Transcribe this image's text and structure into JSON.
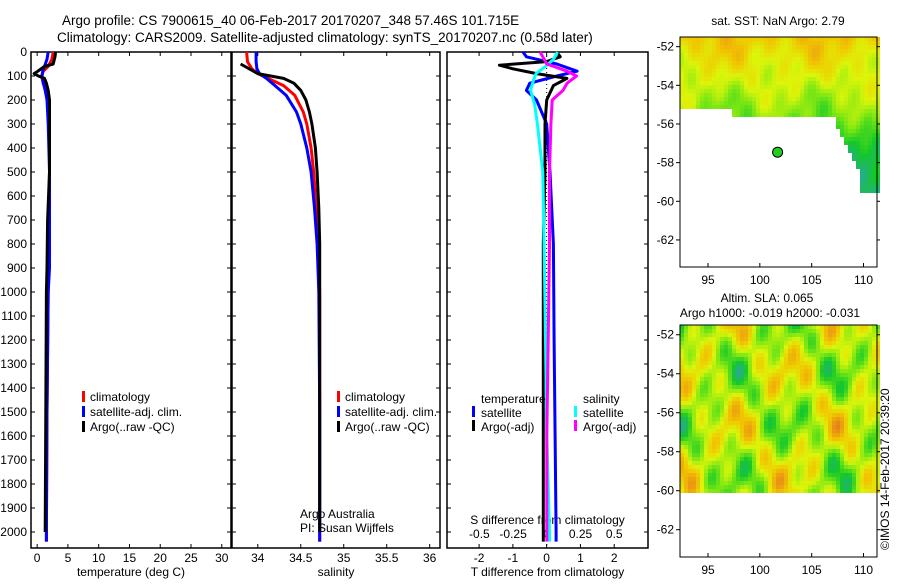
{
  "title": {
    "line1": "Argo profile: CS 7900615_40 06-Feb-2017 20170207_348 57.46S 101.715E",
    "line2": "Climatology: CARS2009. Satellite-adjusted climatology: synTS_20170207.nc (0.58d later)"
  },
  "colors": {
    "climatology": "#ff0000",
    "satellite": "#0000ff",
    "argo": "#000000",
    "s_satellite": "#00ffff",
    "s_argo": "#ff00ff"
  },
  "chart_data": [
    {
      "type": "line",
      "name": "temperature",
      "xlabel": "temperature (deg C)",
      "xlim": [
        -1,
        31.5
      ],
      "ylim": [
        2060,
        0
      ],
      "xticks": [
        0,
        5,
        10,
        15,
        20,
        25,
        30
      ],
      "yticks": [
        0,
        100,
        200,
        300,
        400,
        500,
        600,
        700,
        800,
        900,
        1000,
        1100,
        1200,
        1300,
        1400,
        1500,
        1600,
        1700,
        1800,
        1900,
        2000
      ],
      "legend": [
        "climatology",
        "satellite-adj. clim.",
        "Argo(..raw -QC)"
      ],
      "series": [
        {
          "name": "climatology",
          "color": "#ff0000",
          "depth": [
            0,
            30,
            60,
            80,
            100,
            130,
            160,
            200,
            300,
            500,
            700,
            1000,
            1500,
            2000,
            2040
          ],
          "values": [
            2.6,
            2.4,
            1.8,
            1.0,
            0.7,
            1.0,
            1.6,
            1.9,
            2.0,
            2.0,
            1.9,
            1.8,
            1.6,
            1.5,
            1.5
          ]
        },
        {
          "name": "satellite-adj. clim.",
          "color": "#0000ff",
          "depth": [
            0,
            30,
            60,
            80,
            100,
            130,
            160,
            200,
            300,
            500,
            700,
            900,
            1000,
            1500,
            2000,
            2040
          ],
          "values": [
            1.8,
            1.6,
            1.2,
            0.9,
            0.8,
            1.0,
            1.3,
            1.6,
            1.8,
            2.0,
            2.0,
            2.0,
            1.8,
            1.6,
            1.5,
            1.5
          ]
        },
        {
          "name": "Argo(..raw -QC)",
          "color": "#000000",
          "depth": [
            0,
            20,
            50,
            60,
            80,
            90,
            100,
            110,
            130,
            160,
            200,
            300,
            500,
            700,
            900,
            1000,
            1500,
            2000
          ],
          "values": [
            3.0,
            2.9,
            2.6,
            1.2,
            0.1,
            -0.5,
            0.2,
            1.2,
            1.5,
            1.8,
            2.0,
            2.0,
            2.0,
            1.7,
            1.6,
            1.5,
            1.4,
            1.3
          ]
        }
      ]
    },
    {
      "type": "line",
      "name": "salinity",
      "xlabel": "salinity",
      "xlim": [
        33.7,
        36.12
      ],
      "ylim": [
        2060,
        0
      ],
      "xticks": [
        34,
        34.5,
        35,
        35.5,
        36
      ],
      "legend": [
        "climatology",
        "satellite-adj. clim.",
        "Argo(..raw -QC)"
      ],
      "annotation": [
        "Argo Australia",
        "PI: Susan Wijffels"
      ],
      "series": [
        {
          "name": "climatology",
          "color": "#ff0000",
          "depth": [
            0,
            40,
            70,
            90,
            110,
            140,
            180,
            250,
            300,
            400,
            500,
            650,
            800,
            1000,
            1500,
            2000,
            2040
          ],
          "values": [
            33.87,
            33.88,
            33.93,
            34.0,
            34.12,
            34.3,
            34.43,
            34.53,
            34.57,
            34.62,
            34.65,
            34.68,
            34.7,
            34.72,
            34.72,
            34.72,
            34.72
          ]
        },
        {
          "name": "satellite-adj. clim.",
          "color": "#0000ff",
          "depth": [
            0,
            40,
            70,
            90,
            110,
            140,
            180,
            250,
            300,
            400,
            500,
            650,
            800,
            1000,
            1500,
            2000,
            2040
          ],
          "values": [
            33.98,
            33.98,
            33.99,
            34.02,
            34.1,
            34.2,
            34.33,
            34.45,
            34.5,
            34.57,
            34.62,
            34.66,
            34.69,
            34.71,
            34.72,
            34.72,
            34.72
          ]
        },
        {
          "name": "Argo(..raw -QC)",
          "color": "#000000",
          "depth": [
            50,
            70,
            90,
            100,
            110,
            130,
            160,
            200,
            250,
            300,
            400,
            500,
            650,
            800,
            1000,
            1500,
            2000
          ],
          "values": [
            33.8,
            33.9,
            34.0,
            34.15,
            34.3,
            34.42,
            34.5,
            34.56,
            34.6,
            34.63,
            34.67,
            34.69,
            34.71,
            34.72,
            34.72,
            34.72,
            34.72
          ]
        }
      ]
    },
    {
      "type": "line",
      "name": "difference",
      "xlabel": "T difference from climatology",
      "xlabel_top": "S difference from climatology",
      "xlim": [
        -2.95,
        3.0
      ],
      "slim": [
        -0.74,
        0.75
      ],
      "xticks": [
        -2,
        -1,
        0,
        1,
        2
      ],
      "sticks": [
        -0.5,
        -0.25,
        0,
        0.25,
        0.5
      ],
      "sticklabels": [
        "-0.5",
        "-0.25",
        "0",
        "0.25",
        "0.5"
      ],
      "legend": {
        "temperature": "temperature",
        "t_satellite": "satellite",
        "t_argo": "Argo(-adj)",
        "salinity": "salinity",
        "s_satellite": "satellite",
        "s_argo": "Argo(-adj)"
      },
      "series": [
        {
          "name": "T satellite",
          "axis": "T",
          "color": "#0000ff",
          "depth": [
            0,
            20,
            50,
            80,
            100,
            130,
            160,
            200,
            300,
            500,
            800,
            1200,
            1600,
            2000,
            2040
          ],
          "values": [
            -0.7,
            -0.6,
            0.3,
            0.9,
            0.3,
            -0.5,
            -0.6,
            -0.3,
            0.0,
            0.1,
            0.2,
            0.22,
            0.25,
            0.28,
            0.28
          ]
        },
        {
          "name": "T Argo(-adj)",
          "axis": "T",
          "color": "#000000",
          "depth": [
            0,
            20,
            40,
            55,
            70,
            90,
            110,
            140,
            200,
            300,
            500,
            800,
            1200,
            1600,
            2000,
            2040
          ],
          "values": [
            0.3,
            0.4,
            0.0,
            -1.4,
            -1.0,
            -0.3,
            0.6,
            0.2,
            0.0,
            -0.05,
            -0.05,
            -0.1,
            -0.1,
            -0.1,
            -0.1,
            -0.1
          ]
        },
        {
          "name": "S satellite",
          "axis": "S",
          "color": "#00ffff",
          "depth": [
            0,
            30,
            60,
            90,
            120,
            160,
            220,
            300,
            500,
            800,
            1200,
            1600,
            2000,
            2040
          ],
          "values": [
            0.08,
            0.05,
            -0.01,
            -0.08,
            -0.1,
            -0.12,
            -0.09,
            -0.07,
            -0.03,
            -0.02,
            -0.01,
            0.0,
            0.02,
            0.02
          ]
        },
        {
          "name": "S Argo(-adj)",
          "axis": "S",
          "color": "#ff00ff",
          "depth": [
            0,
            20,
            50,
            80,
            100,
            130,
            160,
            200,
            300,
            500,
            800,
            1200,
            1600,
            2000,
            2040
          ],
          "values": [
            -0.05,
            -0.03,
            0.0,
            0.15,
            0.22,
            0.15,
            0.12,
            0.04,
            0.03,
            0.02,
            0.02,
            0.01,
            0.0,
            0.0,
            0.0
          ]
        }
      ]
    }
  ],
  "maps": {
    "sst": {
      "title": "sat. SST: NaN Argo: 2.79",
      "lon_ticks": [
        95,
        100,
        105,
        110
      ],
      "lat_ticks": [
        -52,
        -54,
        -56,
        -58,
        -60,
        -62
      ],
      "argo_lon": 101.715,
      "argo_lat": -57.46
    },
    "sla": {
      "title1": "Altim. SLA: 0.065",
      "title2": "Argo h1000: -0.019 h2000: -0.031",
      "lon_ticks": [
        95,
        100,
        105,
        110
      ],
      "lat_ticks": [
        -52,
        -54,
        -56,
        -58,
        -60,
        -62
      ]
    }
  },
  "credit": "©IMOS 14-Feb-2017 20:39:20"
}
